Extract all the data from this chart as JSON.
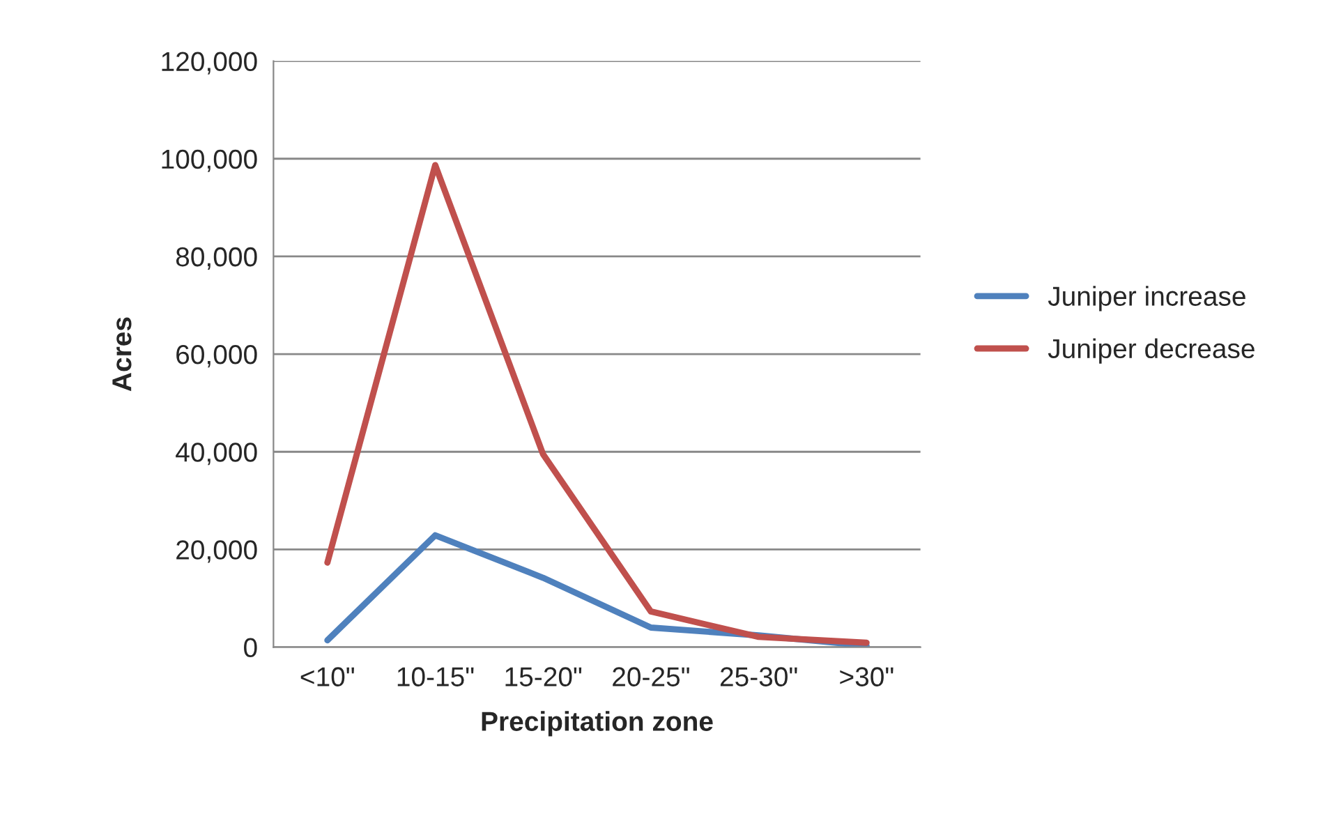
{
  "chart_data": {
    "type": "line",
    "xlabel": "Precipitation zone",
    "ylabel": "Acres",
    "categories": [
      "<10\"",
      "10-15\"",
      "15-20\"",
      "20-25\"",
      "25-30\"",
      ">30\""
    ],
    "series": [
      {
        "name": "Juniper increase",
        "color": "#4f81bd",
        "values": [
          1400,
          22900,
          14200,
          4000,
          2400,
          300
        ]
      },
      {
        "name": "Juniper decrease",
        "color": "#c0504d",
        "values": [
          17300,
          98700,
          39500,
          7300,
          2100,
          900
        ]
      }
    ],
    "ylim": [
      0,
      120000
    ],
    "yticks": [
      {
        "value": 0,
        "label": "0"
      },
      {
        "value": 20000,
        "label": "20,000"
      },
      {
        "value": 40000,
        "label": "40,000"
      },
      {
        "value": 60000,
        "label": "60,000"
      },
      {
        "value": 80000,
        "label": "80,000"
      },
      {
        "value": 100000,
        "label": "100,000"
      },
      {
        "value": 120000,
        "label": "120,000"
      }
    ],
    "grid": "y",
    "legend": "right",
    "marker": "none",
    "line_style": "solid"
  }
}
